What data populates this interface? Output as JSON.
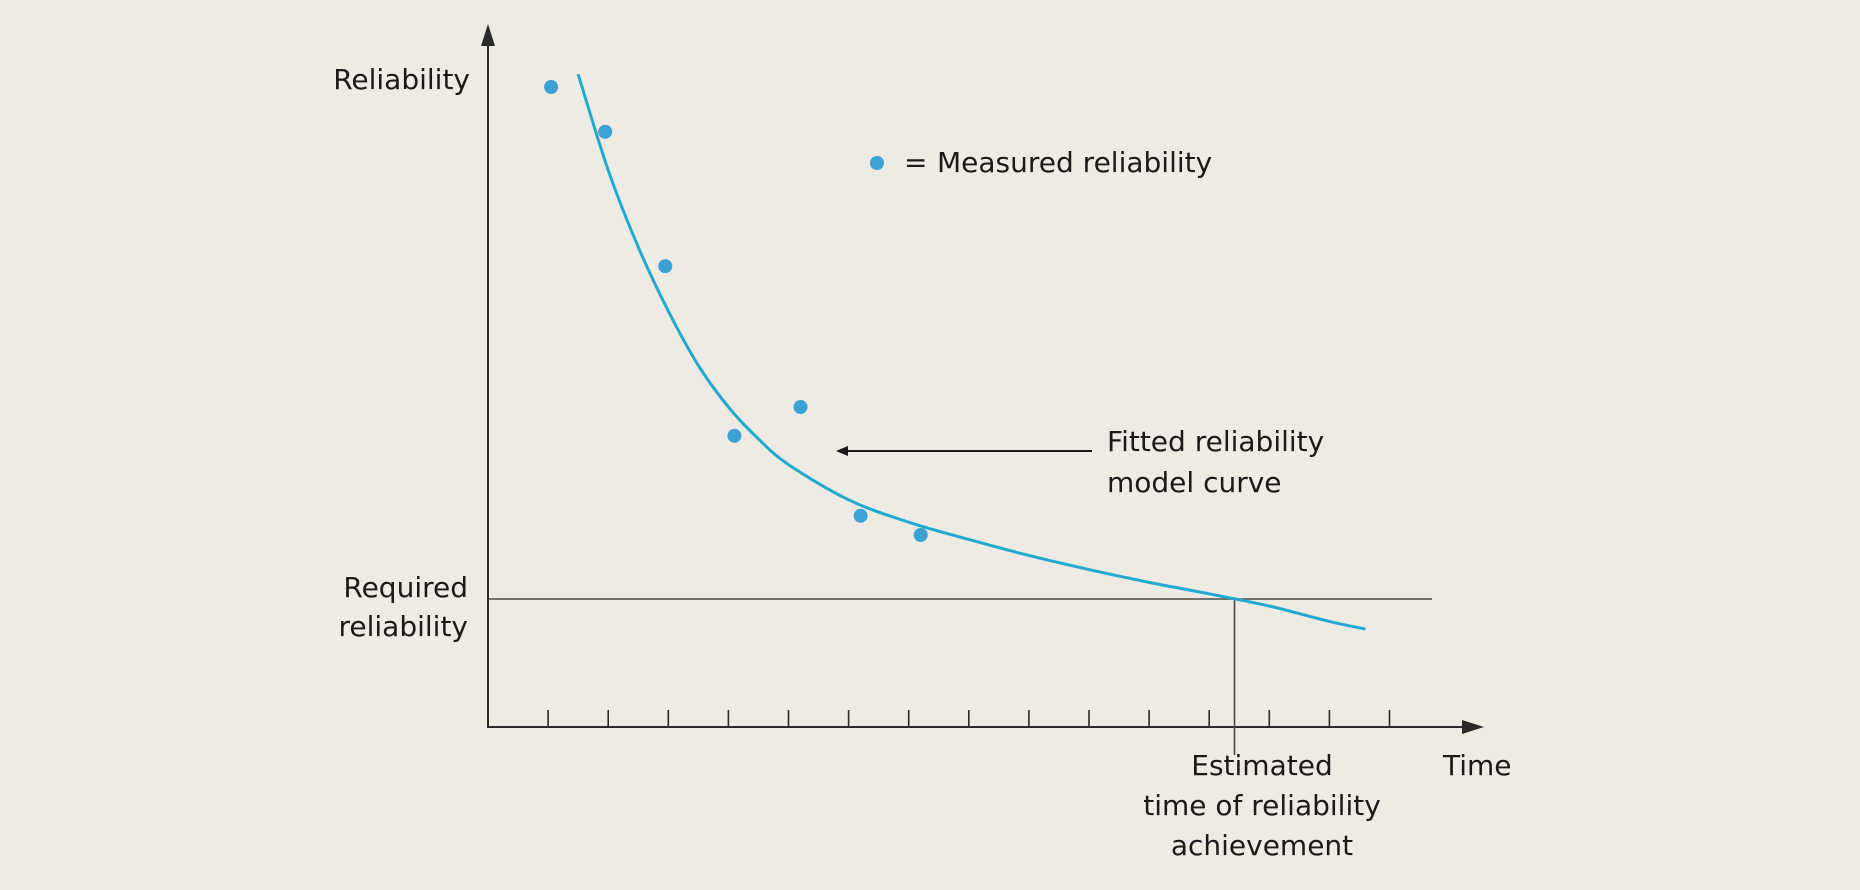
{
  "chart_data": {
    "type": "scatter",
    "xlabel": "Time",
    "ylabel": "Reliability",
    "x_ticks": [
      1,
      2,
      3,
      4,
      5,
      6,
      7,
      8,
      9,
      10,
      11,
      12,
      13,
      14,
      15
    ],
    "required_reliability_label": [
      "Required",
      "reliability"
    ],
    "required_reliability_level": 0.2,
    "series": [
      {
        "name": "Measured reliability",
        "color": "#3aa2d4",
        "marker": "circle",
        "points": [
          {
            "x": 1.05,
            "y": 1.0
          },
          {
            "x": 1.95,
            "y": 0.93
          },
          {
            "x": 2.95,
            "y": 0.72
          },
          {
            "x": 4.1,
            "y": 0.455
          },
          {
            "x": 5.2,
            "y": 0.5
          },
          {
            "x": 6.2,
            "y": 0.33
          },
          {
            "x": 7.2,
            "y": 0.3
          }
        ]
      }
    ],
    "fitted_curve": {
      "color": "#22a9cf",
      "points": [
        {
          "x": 1.5,
          "y": 1.02
        },
        {
          "x": 2.0,
          "y": 0.87
        },
        {
          "x": 2.5,
          "y": 0.75
        },
        {
          "x": 3.0,
          "y": 0.65
        },
        {
          "x": 3.5,
          "y": 0.565
        },
        {
          "x": 4.0,
          "y": 0.5
        },
        {
          "x": 4.5,
          "y": 0.45
        },
        {
          "x": 5.0,
          "y": 0.41
        },
        {
          "x": 6.0,
          "y": 0.355
        },
        {
          "x": 7.0,
          "y": 0.32
        },
        {
          "x": 8.0,
          "y": 0.293
        },
        {
          "x": 9.0,
          "y": 0.268
        },
        {
          "x": 10.0,
          "y": 0.246
        },
        {
          "x": 11.0,
          "y": 0.226
        },
        {
          "x": 12.0,
          "y": 0.208
        },
        {
          "x": 13.0,
          "y": 0.189
        },
        {
          "x": 14.0,
          "y": 0.165
        },
        {
          "x": 14.6,
          "y": 0.153
        }
      ]
    },
    "legend": {
      "symbol_text": "=",
      "label": "Measured reliability"
    },
    "annotations": {
      "curve_label": [
        "Fitted reliability",
        "model curve"
      ],
      "estimate_label": [
        "Estimated",
        "time of reliability",
        "achievement"
      ]
    }
  }
}
